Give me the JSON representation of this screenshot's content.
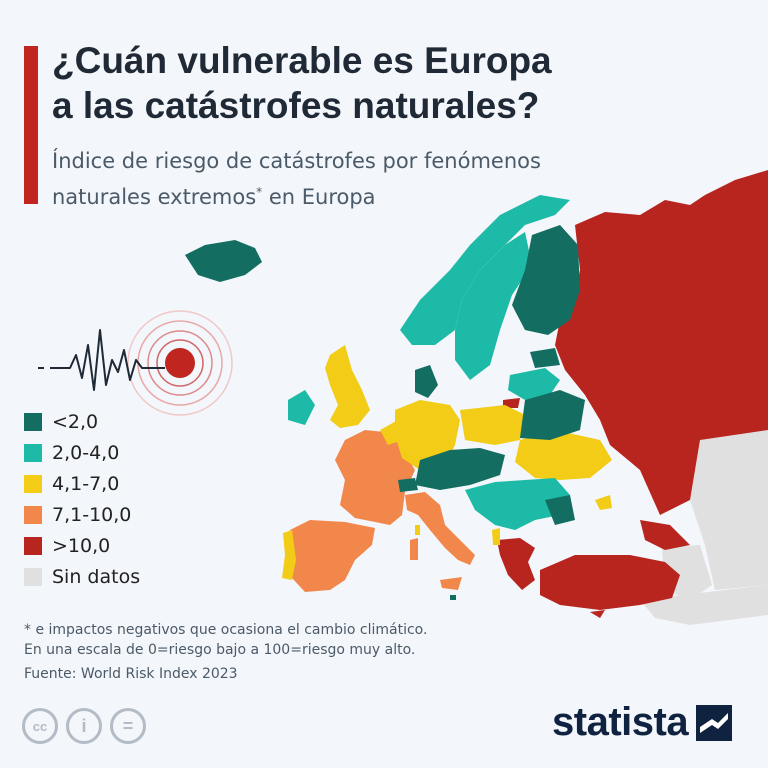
{
  "header": {
    "title_line1": "¿Cuán vulnerable es Europa",
    "title_line2": "a las catástrofes naturales?",
    "subtitle_line1": "Índice de riesgo de catástrofes por fenómenos",
    "subtitle_line2a": "naturales extremos",
    "subtitle_star": "*",
    "subtitle_line2b": " en Europa"
  },
  "legend": [
    {
      "label": "<2,0",
      "color": "#136d60"
    },
    {
      "label": "2,0-4,0",
      "color": "#1ebaa8"
    },
    {
      "label": "4,1-7,0",
      "color": "#f2cc16"
    },
    {
      "label": "7,1-10,0",
      "color": "#f2874c"
    },
    {
      "label": ">10,0",
      "color": "#b8241e"
    },
    {
      "label": "Sin datos",
      "color": "#e0e0e0"
    }
  ],
  "footnote": {
    "line1": "* e impactos negativos que ocasiona el cambio climático.",
    "line2": "En una escala de 0=riesgo bajo a 100=riesgo muy alto.",
    "line3": "Fuente: World Risk Index 2023"
  },
  "brand": {
    "name": "statista"
  },
  "icons": [
    "cc-icon",
    "by-icon",
    "nd-icon"
  ],
  "icon_labels": {
    "cc": "cc",
    "by": "i",
    "nd": "="
  }
}
